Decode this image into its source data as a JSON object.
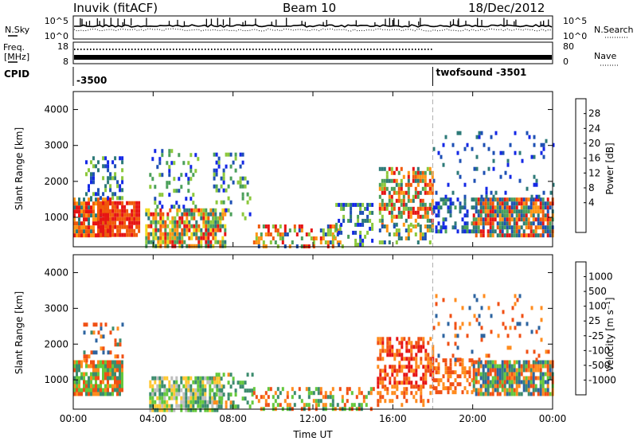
{
  "header": {
    "station": "Inuvik (fitACF)",
    "beam": "Beam 10",
    "date": "18/Dec/2012"
  },
  "top_panels": {
    "nsky_label": "N.Sky",
    "nsearch_label": "N.Search",
    "nsky_ticks": [
      "10^5",
      "10^0"
    ],
    "nsearch_ticks": [
      "10^5",
      "10^0"
    ],
    "freq_label_line1": "Freq.",
    "freq_label_line2": "[MHz]",
    "freq_ticks": [
      "18",
      "8"
    ],
    "nave_label": "Nave",
    "nave_ticks": [
      "80",
      "0"
    ],
    "cpid_label": "CPID",
    "cpid_segments": [
      {
        "label": "-3500",
        "start_hour": 0.0
      },
      {
        "label": "twofsound -3501",
        "start_hour": 18.0
      }
    ]
  },
  "chart_data": [
    {
      "type": "heatmap",
      "name": "power",
      "ylabel": "Slant Range [km]",
      "xlabel": "",
      "xlim": [
        0,
        24
      ],
      "ylim": [
        180,
        4500
      ],
      "x_ticks": [
        0,
        4,
        8,
        12,
        16,
        20,
        24
      ],
      "x_tick_labels": [
        "00:00",
        "04:00",
        "08:00",
        "12:00",
        "16:00",
        "20:00",
        "00:00"
      ],
      "y_ticks": [
        1000,
        2000,
        3000,
        4000
      ],
      "colorbar_label": "Power [dB]",
      "colorbar_ticks": [
        "28",
        "24",
        "20",
        "16",
        "12",
        "8",
        "4"
      ],
      "colorbar_colors": [
        "#1428e6",
        "#1e50b4",
        "#2d7a78",
        "#4ba05a",
        "#8cc83c",
        "#f0dc1e",
        "#ff9614",
        "#f05a0a",
        "#e61414"
      ],
      "blobs": [
        {
          "t0": 0.0,
          "t1": 1.8,
          "r0": 550,
          "r1": 1550,
          "levels": [
            2,
            6,
            7,
            8
          ],
          "density": 0.85
        },
        {
          "t0": 1.2,
          "t1": 3.3,
          "r0": 500,
          "r1": 1450,
          "levels": [
            7,
            8
          ],
          "density": 0.9
        },
        {
          "t0": 0.6,
          "t1": 2.4,
          "r0": 1500,
          "r1": 2700,
          "levels": [
            0,
            1,
            2,
            4
          ],
          "density": 0.3
        },
        {
          "t0": 3.6,
          "t1": 7.6,
          "r0": 200,
          "r1": 1250,
          "levels": [
            2,
            3,
            4,
            5,
            6,
            7,
            8
          ],
          "density": 0.75
        },
        {
          "t0": 3.8,
          "t1": 6.2,
          "r0": 1300,
          "r1": 2900,
          "levels": [
            0,
            1,
            3,
            4
          ],
          "density": 0.2
        },
        {
          "t0": 7.0,
          "t1": 8.8,
          "r0": 1000,
          "r1": 2800,
          "levels": [
            0,
            1,
            3,
            4
          ],
          "density": 0.25
        },
        {
          "t0": 9.0,
          "t1": 13.5,
          "r0": 200,
          "r1": 800,
          "levels": [
            1,
            3,
            4,
            6,
            7,
            8
          ],
          "density": 0.45
        },
        {
          "t0": 13.0,
          "t1": 15.0,
          "r0": 200,
          "r1": 1400,
          "levels": [
            0,
            1,
            2,
            3,
            4
          ],
          "density": 0.35
        },
        {
          "t0": 15.3,
          "t1": 18.0,
          "r0": 800,
          "r1": 2400,
          "levels": [
            2,
            3,
            4,
            6,
            7,
            8
          ],
          "density": 0.55
        },
        {
          "t0": 15.3,
          "t1": 18.0,
          "r0": 250,
          "r1": 800,
          "levels": [
            1,
            2,
            4,
            6
          ],
          "density": 0.3
        },
        {
          "t0": 18.0,
          "t1": 20.0,
          "r0": 600,
          "r1": 1550,
          "levels": [
            0,
            1,
            2,
            3
          ],
          "density": 0.45
        },
        {
          "t0": 20.0,
          "t1": 24.0,
          "r0": 550,
          "r1": 1550,
          "levels": [
            1,
            2,
            3,
            6,
            7,
            8
          ],
          "density": 0.85
        },
        {
          "t0": 18.0,
          "t1": 24.0,
          "r0": 1600,
          "r1": 3400,
          "levels": [
            0,
            1,
            2
          ],
          "density": 0.08
        }
      ]
    },
    {
      "type": "heatmap",
      "name": "velocity",
      "ylabel": "Slant Range [km]",
      "xlabel": "Time UT",
      "xlim": [
        0,
        24
      ],
      "ylim": [
        180,
        4500
      ],
      "x_ticks": [
        0,
        4,
        8,
        12,
        16,
        20,
        24
      ],
      "x_tick_labels": [
        "00:00",
        "04:00",
        "08:00",
        "12:00",
        "16:00",
        "20:00",
        "00:00"
      ],
      "y_ticks": [
        1000,
        2000,
        3000,
        4000
      ],
      "colorbar_label": "Velocity [m s⁻¹]",
      "colorbar_ticks": [
        "1000",
        "500",
        "100",
        "25",
        "-25",
        "-100",
        "-500",
        "-1000"
      ],
      "colorbar_colors": [
        "#1e3cc8",
        "#2d64a0",
        "#3c8c6e",
        "#64c83c",
        "#bebebe",
        "#ffc832",
        "#ff8c1e",
        "#f05014",
        "#e61414"
      ],
      "blobs": [
        {
          "t0": 0.0,
          "t1": 2.5,
          "r0": 600,
          "r1": 1550,
          "levels": [
            2,
            3,
            6,
            7
          ],
          "density": 0.85
        },
        {
          "t0": 0.5,
          "t1": 2.5,
          "r0": 1500,
          "r1": 2600,
          "levels": [
            1,
            2,
            6,
            7
          ],
          "density": 0.2
        },
        {
          "t0": 3.8,
          "t1": 7.5,
          "r0": 200,
          "r1": 1100,
          "levels": [
            2,
            3,
            4,
            5
          ],
          "density": 0.75
        },
        {
          "t0": 7.0,
          "t1": 9.0,
          "r0": 250,
          "r1": 1200,
          "levels": [
            2,
            3,
            6
          ],
          "density": 0.3
        },
        {
          "t0": 9.0,
          "t1": 15.0,
          "r0": 200,
          "r1": 800,
          "levels": [
            2,
            3,
            6,
            7
          ],
          "density": 0.4
        },
        {
          "t0": 15.2,
          "t1": 18.0,
          "r0": 800,
          "r1": 2200,
          "levels": [
            6,
            7,
            8
          ],
          "density": 0.6
        },
        {
          "t0": 15.2,
          "t1": 18.0,
          "r0": 300,
          "r1": 800,
          "levels": [
            6,
            7
          ],
          "density": 0.3
        },
        {
          "t0": 18.0,
          "t1": 20.0,
          "r0": 700,
          "r1": 1600,
          "levels": [
            6,
            7
          ],
          "density": 0.5
        },
        {
          "t0": 20.0,
          "t1": 24.0,
          "r0": 600,
          "r1": 1550,
          "levels": [
            1,
            2,
            3,
            6,
            7
          ],
          "density": 0.85
        },
        {
          "t0": 18.0,
          "t1": 24.0,
          "r0": 1600,
          "r1": 3400,
          "levels": [
            1,
            6,
            7
          ],
          "density": 0.08
        }
      ]
    }
  ]
}
